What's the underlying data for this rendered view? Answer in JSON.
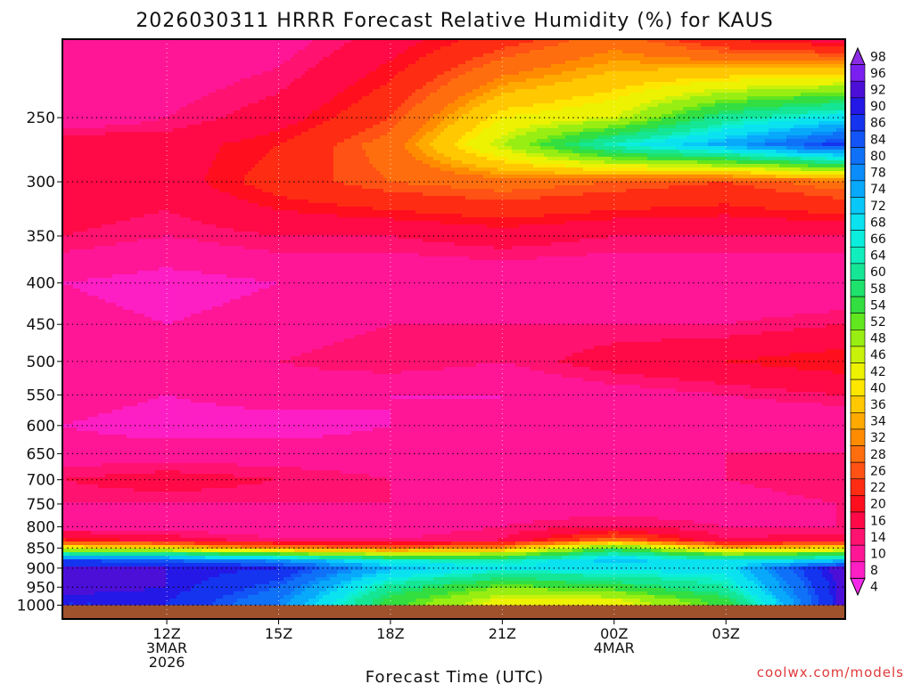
{
  "chart_data": {
    "type": "heatmap",
    "title": "2026030311 HRRR Forecast Relative Humidity (%) for KAUS",
    "xlabel": "Forecast Time (UTC)",
    "ylabel": "",
    "credit": "coolwx.com/models",
    "x_hours": [
      9.2,
      12,
      15,
      18,
      21,
      24,
      27,
      30,
      30.2
    ],
    "x_ticks": [
      {
        "hour": 12,
        "lines": [
          "12Z",
          "3MAR",
          "2026"
        ]
      },
      {
        "hour": 15,
        "lines": [
          "15Z"
        ]
      },
      {
        "hour": 18,
        "lines": [
          "18Z"
        ]
      },
      {
        "hour": 21,
        "lines": [
          "21Z"
        ]
      },
      {
        "hour": 24,
        "lines": [
          "00Z",
          "4MAR"
        ]
      },
      {
        "hour": 27,
        "lines": [
          "03Z"
        ]
      }
    ],
    "y_axis": {
      "scale": "log-pressure",
      "top_hPa": 200,
      "bottom_hPa": 1040,
      "ticks": [
        "250",
        "300",
        "350",
        "400",
        "450",
        "500",
        "550",
        "600",
        "650",
        "700",
        "750",
        "800",
        "850",
        "900",
        "950",
        "1000"
      ]
    },
    "ground_hPa": 1000,
    "ground_color": "#a0522d",
    "pressure_levels": [
      200,
      250,
      270,
      300,
      350,
      400,
      450,
      500,
      550,
      600,
      650,
      700,
      750,
      800,
      830,
      850,
      880,
      900,
      950,
      990
    ],
    "rh_values": [
      [
        12,
        10,
        12,
        18,
        24,
        30,
        22,
        18,
        18
      ],
      [
        10,
        14,
        18,
        26,
        42,
        46,
        62,
        70,
        70
      ],
      [
        20,
        18,
        22,
        30,
        48,
        66,
        76,
        88,
        88
      ],
      [
        20,
        18,
        24,
        28,
        30,
        28,
        26,
        30,
        30
      ],
      [
        16,
        14,
        16,
        16,
        18,
        16,
        16,
        16,
        16
      ],
      [
        10,
        8,
        10,
        10,
        10,
        10,
        10,
        10,
        10
      ],
      [
        12,
        10,
        12,
        14,
        14,
        14,
        14,
        16,
        16
      ],
      [
        10,
        10,
        14,
        16,
        14,
        18,
        20,
        22,
        22
      ],
      [
        12,
        10,
        12,
        10,
        10,
        12,
        14,
        16,
        16
      ],
      [
        10,
        8,
        8,
        10,
        10,
        10,
        10,
        10,
        10
      ],
      [
        12,
        12,
        12,
        12,
        10,
        12,
        14,
        14,
        14
      ],
      [
        16,
        18,
        16,
        14,
        12,
        14,
        14,
        16,
        16
      ],
      [
        14,
        14,
        14,
        14,
        12,
        12,
        12,
        14,
        14
      ],
      [
        12,
        12,
        12,
        12,
        14,
        16,
        14,
        14,
        14
      ],
      [
        22,
        18,
        14,
        14,
        16,
        30,
        16,
        18,
        18
      ],
      [
        44,
        40,
        32,
        28,
        34,
        56,
        36,
        40,
        40
      ],
      [
        86,
        84,
        78,
        66,
        64,
        74,
        68,
        72,
        72
      ],
      [
        92,
        92,
        90,
        74,
        68,
        70,
        70,
        94,
        94
      ],
      [
        94,
        92,
        84,
        62,
        52,
        56,
        64,
        92,
        92
      ],
      [
        90,
        90,
        80,
        56,
        44,
        44,
        56,
        92,
        92
      ]
    ],
    "colorbar": {
      "levels": [
        "98",
        "96",
        "92",
        "90",
        "86",
        "84",
        "80",
        "78",
        "74",
        "72",
        "68",
        "66",
        "64",
        "60",
        "58",
        "54",
        "52",
        "48",
        "46",
        "42",
        "40",
        "36",
        "34",
        "32",
        "28",
        "26",
        "22",
        "20",
        "16",
        "14",
        "10",
        "8",
        "4"
      ],
      "colors": [
        "#8b2be2",
        "#7a1ff0",
        "#4b0fd8",
        "#2418e6",
        "#1434f0",
        "#1254f6",
        "#0f70f8",
        "#0a8cfa",
        "#08a8fb",
        "#08c8fa",
        "#0ae2f0",
        "#0ceedd",
        "#10eebe",
        "#14e696",
        "#1ee26c",
        "#32de40",
        "#62e61e",
        "#98ee12",
        "#c8f20a",
        "#ecf202",
        "#ffe600",
        "#ffc800",
        "#ffaa00",
        "#ff8c00",
        "#ff6e0e",
        "#ff5214",
        "#ff2c14",
        "#ff0e1e",
        "#ff0a46",
        "#ff1270",
        "#ff1696",
        "#fd1ec4",
        "#f22ae8"
      ]
    }
  }
}
